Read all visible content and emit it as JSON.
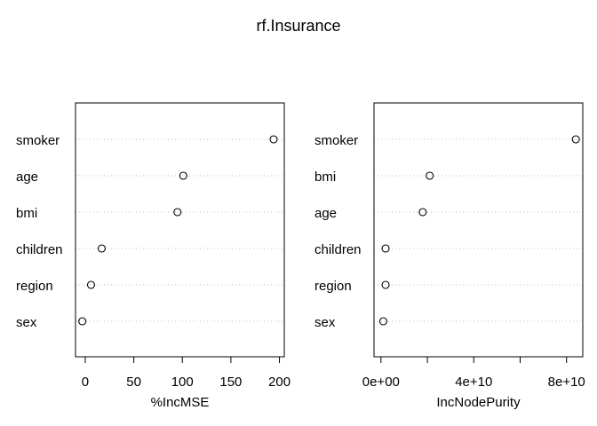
{
  "title": "rf.Insurance",
  "chart_data": [
    {
      "type": "scatter",
      "xlabel": "%IncMSE",
      "ylabel": "",
      "categories": [
        "smoker",
        "age",
        "bmi",
        "children",
        "region",
        "sex"
      ],
      "values": [
        194,
        101,
        95,
        17,
        6,
        -3
      ],
      "xlim": [
        -10,
        205
      ],
      "ticks": [
        0,
        50,
        100,
        150,
        200
      ],
      "tick_labels": [
        "0",
        "50",
        "100",
        "150",
        "200"
      ],
      "grid": "dotted horizontal",
      "legend": "none"
    },
    {
      "type": "scatter",
      "xlabel": "IncNodePurity",
      "ylabel": "",
      "categories": [
        "smoker",
        "bmi",
        "age",
        "children",
        "region",
        "sex"
      ],
      "values": [
        84000000000,
        21000000000,
        18000000000,
        2000000000,
        2000000000,
        1000000000
      ],
      "xlim": [
        -3000000000,
        87000000000
      ],
      "ticks": [
        0,
        20000000000,
        40000000000,
        60000000000,
        80000000000
      ],
      "tick_labels": [
        "0e+00",
        "",
        "4e+10",
        "",
        "8e+10"
      ],
      "grid": "dotted horizontal",
      "legend": "none"
    }
  ]
}
